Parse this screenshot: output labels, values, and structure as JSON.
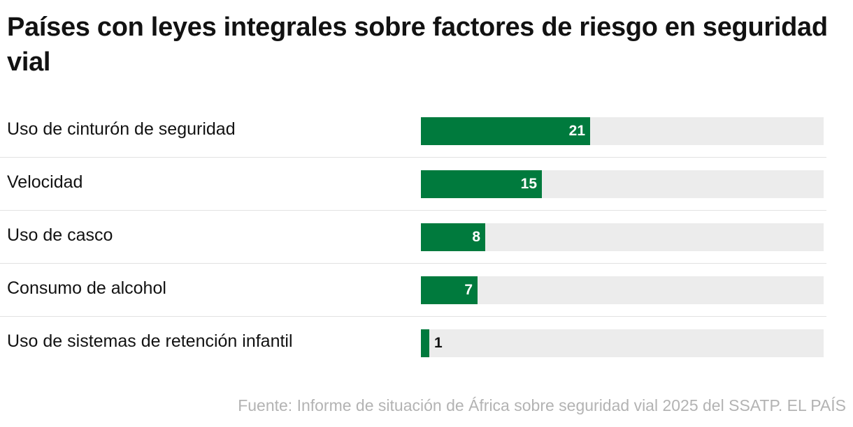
{
  "chart_data": {
    "type": "bar",
    "orientation": "horizontal",
    "title": "Países con leyes integrales sobre factores de riesgo en seguridad vial",
    "categories": [
      "Uso de cinturón de seguridad",
      "Velocidad",
      "Uso de casco",
      "Consumo de alcohol",
      "Uso de sistemas de retención infantil"
    ],
    "values": [
      21,
      15,
      8,
      7,
      1
    ],
    "xlim": [
      0,
      50
    ],
    "data_labels": true,
    "bar_color": "#007a3d",
    "track_color": "#ececec",
    "xlabel": "",
    "ylabel": ""
  },
  "source": "Fuente: Informe de situación de África sobre seguridad vial 2025 del SSATP. EL PAÍS"
}
